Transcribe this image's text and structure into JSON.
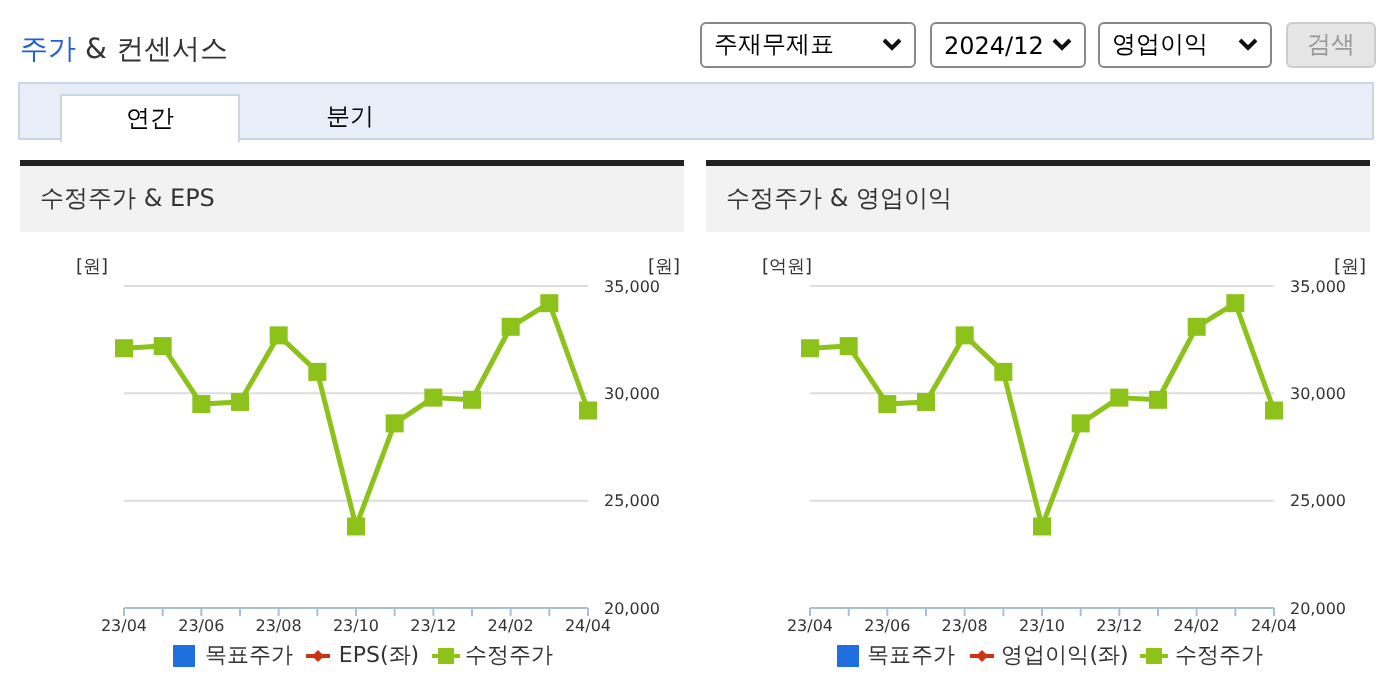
{
  "chart_data": [
    {
      "type": "other",
      "title": "주가 & 컨센서스",
      "annotations": [
        "주재무제표",
        "2024/12",
        "영업이익",
        "검색",
        "연간",
        "분기"
      ]
    },
    {
      "type": "line",
      "title": "수정주가 & EPS",
      "ylabel": "[원]",
      "y2label": "[원]",
      "categories": [
        "23/04",
        null,
        "23/06",
        null,
        "23/08",
        null,
        "23/10",
        null,
        "23/12",
        null,
        "24/02",
        null,
        "24/04"
      ],
      "series": [
        {
          "name": "목표주가",
          "color": "#1f6fde",
          "marker": "square",
          "values": [
            null,
            null,
            null,
            null,
            null,
            null,
            null,
            null,
            null,
            null,
            null,
            null,
            null
          ]
        },
        {
          "name": "EPS(좌)",
          "color": "#cc3311",
          "marker": "diamond",
          "values": [
            null,
            null,
            null,
            null,
            null,
            null,
            null,
            null,
            null,
            null,
            null,
            null,
            null
          ]
        },
        {
          "name": "수정주가",
          "color": "#8cc21a",
          "marker": "square",
          "axis": "y2",
          "values": [
            32100,
            32200,
            29500,
            29600,
            32700,
            31000,
            23800,
            28600,
            29800,
            29700,
            33100,
            34200,
            29200
          ]
        }
      ],
      "y2lim": [
        20000,
        35000
      ],
      "y2ticks": [
        {
          "value": 20000,
          "label": "20,000"
        },
        {
          "value": 25000,
          "label": "25,000"
        },
        {
          "value": 30000,
          "label": "30,000"
        },
        {
          "value": 35000,
          "label": "35,000"
        }
      ],
      "grid": "y",
      "legend": "bottom"
    },
    {
      "type": "line",
      "title": "수정주가 & 영업이익",
      "ylabel": "[억원]",
      "y2label": "[원]",
      "categories": [
        "23/04",
        null,
        "23/06",
        null,
        "23/08",
        null,
        "23/10",
        null,
        "23/12",
        null,
        "24/02",
        null,
        "24/04"
      ],
      "series": [
        {
          "name": "목표주가",
          "color": "#1f6fde",
          "marker": "square",
          "values": [
            null,
            null,
            null,
            null,
            null,
            null,
            null,
            null,
            null,
            null,
            null,
            null,
            null
          ]
        },
        {
          "name": "영업이익(좌)",
          "color": "#cc3311",
          "marker": "diamond",
          "values": [
            null,
            null,
            null,
            null,
            null,
            null,
            null,
            null,
            null,
            null,
            null,
            null,
            null
          ]
        },
        {
          "name": "수정주가",
          "color": "#8cc21a",
          "marker": "square",
          "axis": "y2",
          "values": [
            32100,
            32200,
            29500,
            29600,
            32700,
            31000,
            23800,
            28600,
            29800,
            29700,
            33100,
            34200,
            29200
          ]
        }
      ],
      "y2lim": [
        20000,
        35000
      ],
      "y2ticks": [
        {
          "value": 20000,
          "label": "20,000"
        },
        {
          "value": 25000,
          "label": "25,000"
        },
        {
          "value": 30000,
          "label": "30,000"
        },
        {
          "value": 35000,
          "label": "35,000"
        }
      ],
      "grid": "y",
      "legend": "bottom"
    }
  ]
}
